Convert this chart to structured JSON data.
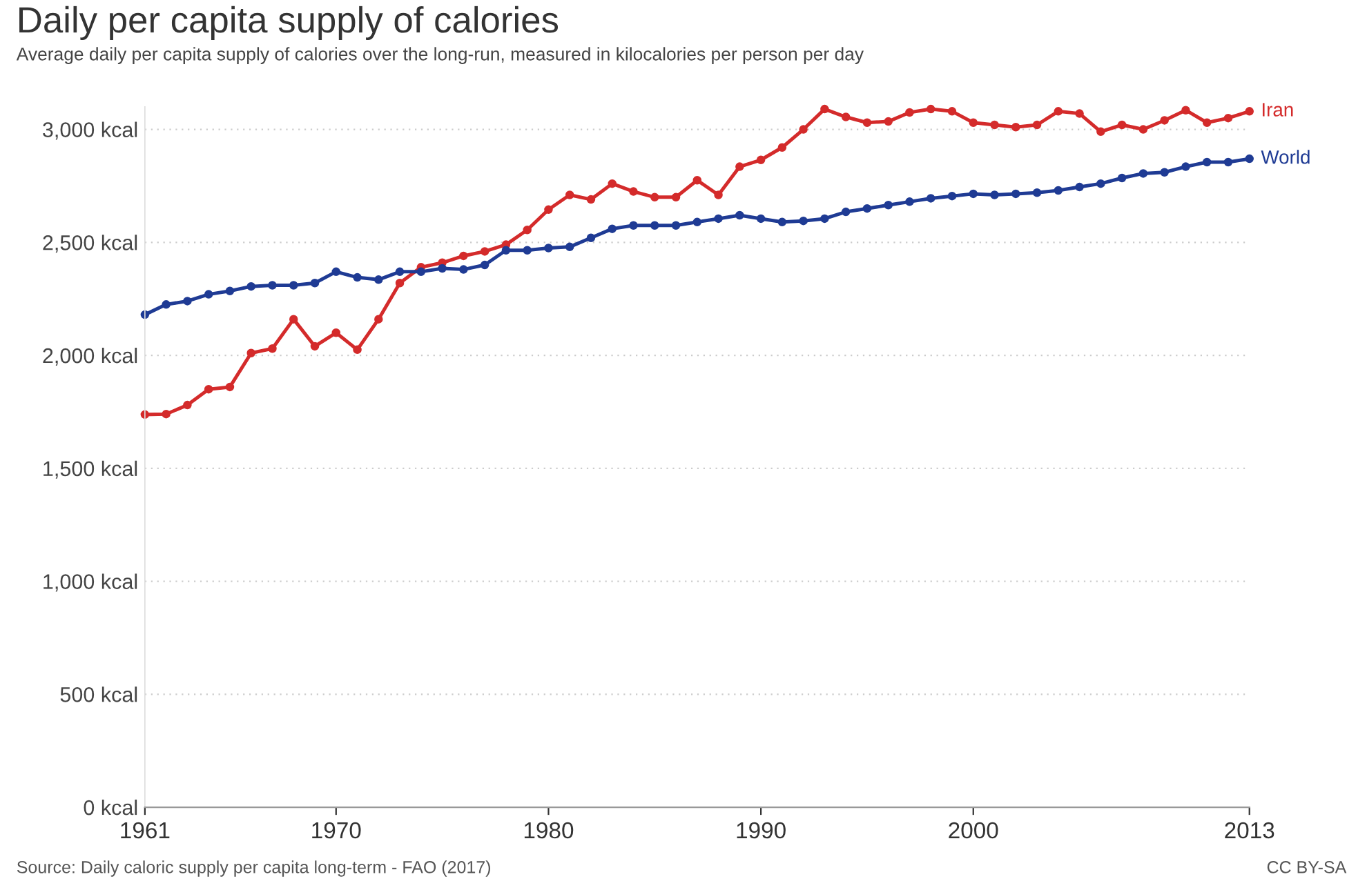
{
  "chart_data": {
    "type": "line",
    "title": "Daily per capita supply of calories",
    "subtitle": "Average daily per capita supply of calories over the long-run, measured in kilocalories per person per day",
    "annotations": [
      "Source: Daily caloric supply per capita long-term - FAO (2017)",
      "CC BY-SA"
    ],
    "x": [
      1961,
      1962,
      1963,
      1964,
      1965,
      1966,
      1967,
      1968,
      1969,
      1970,
      1971,
      1972,
      1973,
      1974,
      1975,
      1976,
      1977,
      1978,
      1979,
      1980,
      1981,
      1982,
      1983,
      1984,
      1985,
      1986,
      1987,
      1988,
      1989,
      1990,
      1991,
      1992,
      1993,
      1994,
      1995,
      1996,
      1997,
      1998,
      1999,
      2000,
      2001,
      2002,
      2003,
      2004,
      2005,
      2006,
      2007,
      2008,
      2009,
      2010,
      2011,
      2012,
      2013
    ],
    "series": [
      {
        "name": "Iran",
        "color": "#d42b2b",
        "values": [
          1738,
          1740,
          1780,
          1850,
          1860,
          2010,
          2030,
          2160,
          2040,
          2100,
          2025,
          2160,
          2320,
          2390,
          2410,
          2440,
          2460,
          2490,
          2555,
          2645,
          2710,
          2690,
          2760,
          2725,
          2700,
          2700,
          2775,
          2710,
          2835,
          2865,
          2920,
          3000,
          3090,
          3055,
          3030,
          3035,
          3075,
          3090,
          3080,
          3030,
          3020,
          3010,
          3020,
          3080,
          3070,
          2990,
          3020,
          3000,
          3040,
          3085,
          3030,
          3050,
          3080
        ]
      },
      {
        "name": "World",
        "color": "#1f3b94",
        "values": [
          2180,
          2225,
          2240,
          2270,
          2285,
          2305,
          2310,
          2310,
          2320,
          2370,
          2345,
          2335,
          2370,
          2370,
          2385,
          2380,
          2400,
          2465,
          2465,
          2475,
          2480,
          2520,
          2560,
          2575,
          2575,
          2575,
          2590,
          2605,
          2620,
          2605,
          2590,
          2595,
          2605,
          2635,
          2650,
          2665,
          2680,
          2695,
          2705,
          2715,
          2710,
          2715,
          2720,
          2730,
          2745,
          2760,
          2785,
          2805,
          2810,
          2835,
          2855,
          2855,
          2870
        ]
      }
    ],
    "xlim": [
      1961,
      2013
    ],
    "xticks": [
      1961,
      1970,
      1980,
      1990,
      2000,
      2013
    ],
    "ylim": [
      0,
      3100
    ],
    "yticks": [
      {
        "value": 0,
        "label": "0 kcal"
      },
      {
        "value": 500,
        "label": "500 kcal"
      },
      {
        "value": 1000,
        "label": "1,000 kcal"
      },
      {
        "value": 1500,
        "label": "1,500 kcal"
      },
      {
        "value": 2000,
        "label": "2,000 kcal"
      },
      {
        "value": 2500,
        "label": "2,500 kcal"
      },
      {
        "value": 3000,
        "label": "3,000 kcal"
      }
    ],
    "grid": "y",
    "marker": "circle",
    "line_style": "solid",
    "legend": "right"
  }
}
